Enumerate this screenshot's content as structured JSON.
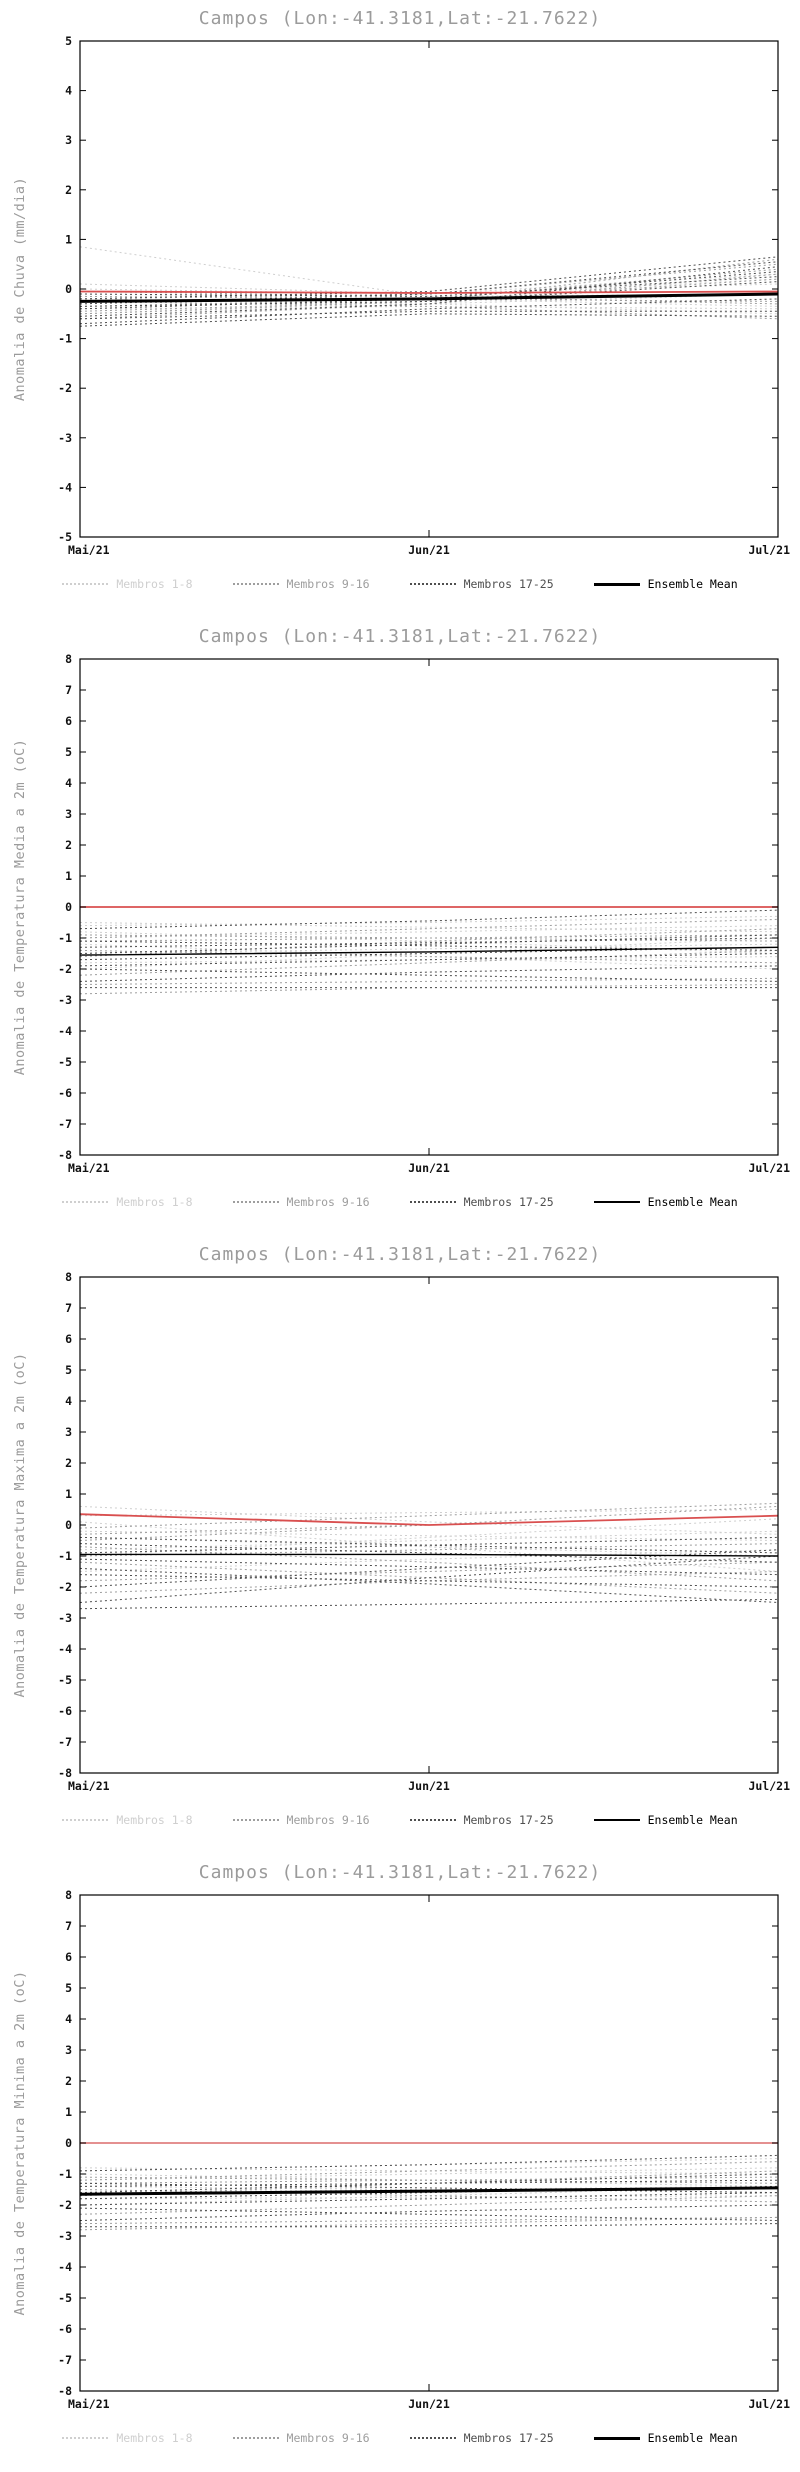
{
  "charts_common": {
    "title": "Campos (Lon:-41.3181,Lat:-21.7622)",
    "x_ticks": [
      "Mai/21",
      "Jun/21",
      "Jul/21"
    ],
    "legend": [
      {
        "label": "Membros 1-8",
        "color": "#cfcfcf",
        "style": "dotted"
      },
      {
        "label": "Membros 9-16",
        "color": "#9e9e9e",
        "style": "dotted"
      },
      {
        "label": "Membros 17-25",
        "color": "#4f4f4f",
        "style": "dotted"
      },
      {
        "label": "Ensemble Mean",
        "color": "#000000",
        "style": "solid"
      }
    ]
  },
  "chart_data": [
    {
      "type": "line",
      "title": "Campos (Lon:-41.3181,Lat:-21.7622)",
      "ylabel": "Anomalia de Chuva (mm/dia)",
      "xlabel": "",
      "ylim": [
        -5,
        5
      ],
      "ytick_step": 1,
      "grid": false,
      "legend_position": "bottom",
      "x": [
        "Mai/21",
        "Jun/21",
        "Jul/21"
      ],
      "series_groups": [
        {
          "name": "Membros 1-8",
          "color": "#cfcfcf",
          "dash": true,
          "members": [
            [
              0.85,
              -0.15,
              -0.1
            ],
            [
              0.1,
              -0.1,
              0.3
            ],
            [
              -0.1,
              -0.2,
              -0.35
            ],
            [
              -0.3,
              -0.15,
              0.2
            ],
            [
              -0.5,
              -0.3,
              -0.1
            ],
            [
              -0.2,
              -0.3,
              -0.5
            ],
            [
              0.0,
              -0.1,
              0.1
            ],
            [
              -0.4,
              -0.35,
              -0.4
            ]
          ]
        },
        {
          "name": "Membros 9-16",
          "color": "#9e9e9e",
          "dash": true,
          "members": [
            [
              -0.2,
              -0.1,
              0.5
            ],
            [
              -0.35,
              -0.2,
              0.4
            ],
            [
              -0.5,
              -0.25,
              0.6
            ],
            [
              -0.15,
              -0.2,
              -0.25
            ],
            [
              -0.6,
              -0.3,
              0.3
            ],
            [
              -0.25,
              -0.35,
              -0.6
            ],
            [
              -0.45,
              -0.25,
              0.2
            ],
            [
              -0.05,
              -0.15,
              -0.3
            ]
          ]
        },
        {
          "name": "Membros 17-25",
          "color": "#4f4f4f",
          "dash": true,
          "members": [
            [
              -0.3,
              -0.1,
              0.55
            ],
            [
              -0.55,
              -0.3,
              0.45
            ],
            [
              -0.7,
              -0.4,
              -0.2
            ],
            [
              -0.4,
              -0.2,
              0.35
            ],
            [
              -0.2,
              -0.05,
              0.65
            ],
            [
              -0.6,
              -0.45,
              -0.45
            ],
            [
              -0.35,
              -0.25,
              0.15
            ],
            [
              -0.75,
              -0.5,
              -0.55
            ],
            [
              -0.1,
              -0.15,
              0.25
            ]
          ]
        }
      ],
      "ensemble_mean": [
        -0.25,
        -0.2,
        -0.1
      ],
      "mean_thick": true,
      "reference_line": {
        "color": "#d94f4f",
        "values": [
          -0.05,
          -0.08,
          -0.05
        ]
      }
    },
    {
      "type": "line",
      "title": "Campos (Lon:-41.3181,Lat:-21.7622)",
      "ylabel": "Anomalia de Temperatura Media a 2m (oC)",
      "xlabel": "",
      "ylim": [
        -8,
        8
      ],
      "ytick_step": 1,
      "grid": false,
      "legend_position": "bottom",
      "x": [
        "Mai/21",
        "Jun/21",
        "Jul/21"
      ],
      "series_groups": [
        {
          "name": "Membros 1-8",
          "color": "#cfcfcf",
          "dash": true,
          "members": [
            [
              -0.5,
              -0.65,
              -0.8
            ],
            [
              -1.0,
              -0.8,
              -0.6
            ],
            [
              -1.5,
              -1.35,
              -1.2
            ],
            [
              -0.8,
              -1.1,
              -1.5
            ],
            [
              -2.0,
              -1.5,
              -1.0
            ],
            [
              -1.2,
              -1.6,
              -2.0
            ],
            [
              -0.6,
              -0.5,
              -0.3
            ],
            [
              -1.8,
              -1.7,
              -1.6
            ]
          ]
        },
        {
          "name": "Membros 9-16",
          "color": "#9e9e9e",
          "dash": true,
          "members": [
            [
              -1.1,
              -1.0,
              -0.9
            ],
            [
              -2.2,
              -1.8,
              -1.4
            ],
            [
              -0.9,
              -1.0,
              -1.1
            ],
            [
              -1.6,
              -1.1,
              -0.7
            ],
            [
              -2.5,
              -2.4,
              -2.3
            ],
            [
              -1.4,
              -1.6,
              -1.8
            ],
            [
              -2.8,
              -2.6,
              -2.5
            ],
            [
              -1.0,
              -0.7,
              -0.4
            ]
          ]
        },
        {
          "name": "Membros 17-25",
          "color": "#4f4f4f",
          "dash": true,
          "members": [
            [
              -1.3,
              -1.15,
              -1.0
            ],
            [
              -2.0,
              -2.2,
              -2.4
            ],
            [
              -0.7,
              -0.45,
              -0.1
            ],
            [
              -1.7,
              -1.5,
              -1.3
            ],
            [
              -2.4,
              -2.1,
              -1.9
            ],
            [
              -1.5,
              -1.2,
              -0.9
            ],
            [
              -2.6,
              -2.6,
              -2.6
            ],
            [
              -1.9,
              -1.7,
              -1.5
            ],
            [
              -1.1,
              -1.25,
              -1.4
            ]
          ]
        }
      ],
      "ensemble_mean": [
        -1.55,
        -1.45,
        -1.3
      ],
      "mean_thick": false,
      "reference_line": {
        "color": "#d94f4f",
        "values": [
          0.0,
          0.0,
          0.0
        ]
      }
    },
    {
      "type": "line",
      "title": "Campos (Lon:-41.3181,Lat:-21.7622)",
      "ylabel": "Anomalia de Temperatura Maxima a 2m (oC)",
      "xlabel": "",
      "ylim": [
        -8,
        8
      ],
      "ytick_step": 1,
      "grid": false,
      "legend_position": "bottom",
      "x": [
        "Mai/21",
        "Jun/21",
        "Jul/21"
      ],
      "series_groups": [
        {
          "name": "Membros 1-8",
          "color": "#cfcfcf",
          "dash": true,
          "members": [
            [
              0.6,
              0.1,
              -0.3
            ],
            [
              0.3,
              0.4,
              0.5
            ],
            [
              -0.4,
              -0.7,
              -1.0
            ],
            [
              -1.0,
              -0.4,
              0.2
            ],
            [
              -0.2,
              -0.35,
              -0.5
            ],
            [
              -1.5,
              -1.1,
              -0.8
            ],
            [
              0.1,
              -0.7,
              -1.5
            ],
            [
              -0.8,
              -0.5,
              -0.2
            ]
          ]
        },
        {
          "name": "Membros 9-16",
          "color": "#9e9e9e",
          "dash": true,
          "members": [
            [
              -0.5,
              0.0,
              0.6
            ],
            [
              -1.2,
              -1.7,
              -2.2
            ],
            [
              -0.3,
              0.0,
              0.3
            ],
            [
              -1.8,
              -1.5,
              -1.2
            ],
            [
              -0.7,
              -1.2,
              -1.8
            ],
            [
              -2.2,
              -1.8,
              -1.5
            ],
            [
              -1.0,
              -0.8,
              -0.6
            ],
            [
              -0.1,
              0.3,
              0.7
            ]
          ]
        },
        {
          "name": "Membros 17-25",
          "color": "#4f4f4f",
          "dash": true,
          "members": [
            [
              -0.6,
              -0.9,
              -1.2
            ],
            [
              -1.4,
              -1.9,
              -2.5
            ],
            [
              -2.5,
              -1.7,
              -1.0
            ],
            [
              -0.9,
              -0.65,
              -0.4
            ],
            [
              -1.6,
              -1.8,
              -2.0
            ],
            [
              -2.0,
              -1.4,
              -0.8
            ],
            [
              -1.1,
              -1.35,
              -1.6
            ],
            [
              -2.7,
              -2.55,
              -2.4
            ],
            [
              -0.4,
              -0.65,
              -0.9
            ]
          ]
        }
      ],
      "ensemble_mean": [
        -0.95,
        -0.95,
        -1.0
      ],
      "mean_thick": false,
      "reference_line": {
        "color": "#d94f4f",
        "values": [
          0.35,
          0.0,
          0.3
        ]
      }
    },
    {
      "type": "line",
      "title": "Campos (Lon:-41.3181,Lat:-21.7622)",
      "ylabel": "Anomalia de Temperatura Minima a 2m (oC)",
      "xlabel": "",
      "ylim": [
        -8,
        8
      ],
      "ytick_step": 1,
      "grid": false,
      "legend_position": "bottom",
      "x": [
        "Mai/21",
        "Jun/21",
        "Jul/21"
      ],
      "series_groups": [
        {
          "name": "Membros 1-8",
          "color": "#cfcfcf",
          "dash": true,
          "members": [
            [
              -0.8,
              -0.9,
              -1.0
            ],
            [
              -1.2,
              -1.0,
              -0.8
            ],
            [
              -1.6,
              -1.5,
              -1.4
            ],
            [
              -1.0,
              -1.2,
              -1.4
            ],
            [
              -2.0,
              -1.7,
              -1.4
            ],
            [
              -1.4,
              -1.5,
              -1.6
            ],
            [
              -0.9,
              -0.7,
              -0.5
            ],
            [
              -1.8,
              -1.75,
              -1.7
            ]
          ]
        },
        {
          "name": "Membros 9-16",
          "color": "#9e9e9e",
          "dash": true,
          "members": [
            [
              -1.3,
              -1.2,
              -1.1
            ],
            [
              -2.3,
              -2.0,
              -1.7
            ],
            [
              -1.1,
              -1.2,
              -1.3
            ],
            [
              -1.7,
              -1.3,
              -0.9
            ],
            [
              -2.6,
              -2.5,
              -2.4
            ],
            [
              -1.5,
              -1.7,
              -1.9
            ],
            [
              -2.8,
              -2.6,
              -2.4
            ],
            [
              -1.2,
              -0.9,
              -0.6
            ]
          ]
        },
        {
          "name": "Membros 17-25",
          "color": "#4f4f4f",
          "dash": true,
          "members": [
            [
              -1.4,
              -1.3,
              -1.2
            ],
            [
              -2.1,
              -2.3,
              -2.5
            ],
            [
              -0.9,
              -0.7,
              -0.4
            ],
            [
              -1.8,
              -1.6,
              -1.4
            ],
            [
              -2.5,
              -2.2,
              -2.0
            ],
            [
              -1.6,
              -1.3,
              -1.0
            ],
            [
              -2.7,
              -2.7,
              -2.6
            ],
            [
              -2.0,
              -1.8,
              -1.6
            ],
            [
              -1.3,
              -1.45,
              -1.6
            ]
          ]
        }
      ],
      "ensemble_mean": [
        -1.65,
        -1.55,
        -1.45
      ],
      "mean_thick": true,
      "reference_line": {
        "color": "#e08080",
        "values": [
          0.0,
          0.0,
          0.0
        ]
      }
    }
  ]
}
